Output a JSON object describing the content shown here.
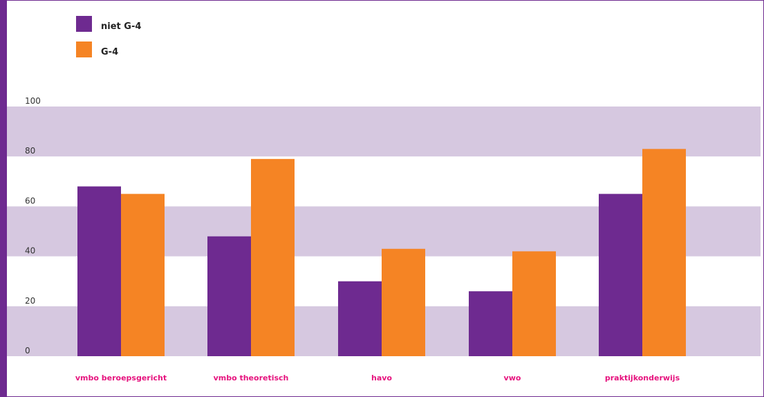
{
  "colors": {
    "purple": "#6e2a90",
    "orange": "#f58424",
    "band": "#d6c8e0",
    "category_label": "#e6137e",
    "frame": "#6e2a90"
  },
  "legend": {
    "items": [
      {
        "label": "niet G-4",
        "color": "#6e2a90"
      },
      {
        "label": "G-4",
        "color": "#f58424"
      }
    ]
  },
  "chart_data": {
    "type": "bar",
    "title": "",
    "xlabel": "",
    "ylabel": "",
    "ylim": [
      0,
      100
    ],
    "yticks": [
      0,
      20,
      40,
      60,
      80,
      100
    ],
    "grid": "alternating horizontal bands",
    "legend_position": "top-left",
    "categories": [
      "vmbo beroepsgericht",
      "vmbo theoretisch",
      "havo",
      "vwo",
      "praktijkonderwijs"
    ],
    "series": [
      {
        "name": "niet G-4",
        "color": "#6e2a90",
        "values": [
          68,
          48,
          30,
          26,
          65
        ]
      },
      {
        "name": "G-4",
        "color": "#f58424",
        "values": [
          65,
          79,
          43,
          42,
          83
        ]
      }
    ]
  }
}
